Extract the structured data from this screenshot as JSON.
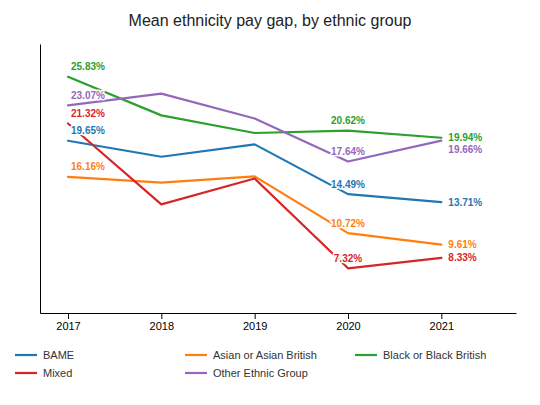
{
  "chart_data": {
    "type": "line",
    "title": "Mean ethnicity pay gap, by ethnic group",
    "x": [
      2017,
      2018,
      2019,
      2020,
      2021
    ],
    "series": [
      {
        "name": "BAME",
        "values": [
          19.65,
          18.1,
          19.3,
          14.49,
          13.71
        ],
        "value_labels": [
          "19.65%",
          null,
          null,
          "14.49%",
          "13.71%"
        ]
      },
      {
        "name": "Asian or Asian British",
        "values": [
          16.16,
          15.6,
          16.2,
          10.72,
          9.61
        ],
        "value_labels": [
          "16.16%",
          null,
          null,
          "10.72%",
          "9.61%"
        ]
      },
      {
        "name": "Black or Black British",
        "values": [
          25.83,
          22.1,
          20.4,
          20.62,
          19.94
        ],
        "value_labels": [
          "25.83%",
          null,
          null,
          "20.62%",
          "19.94%"
        ]
      },
      {
        "name": "Mixed",
        "values": [
          21.32,
          13.5,
          16.0,
          7.32,
          8.33
        ],
        "value_labels": [
          "21.32%",
          null,
          null,
          "7.32%",
          "8.33%"
        ]
      },
      {
        "name": "Other Ethnic Group",
        "values": [
          23.07,
          24.2,
          21.8,
          17.64,
          19.66
        ],
        "value_labels": [
          "23.07%",
          null,
          null,
          "17.64%",
          "19.66%"
        ]
      }
    ],
    "xlim": [
      2016.7,
      2021.8
    ],
    "xticks": [
      2017,
      2018,
      2019,
      2020,
      2021
    ],
    "ylim": [
      3,
      29
    ],
    "tick_labels": "x",
    "data_labels": true,
    "legend": "bottom"
  }
}
